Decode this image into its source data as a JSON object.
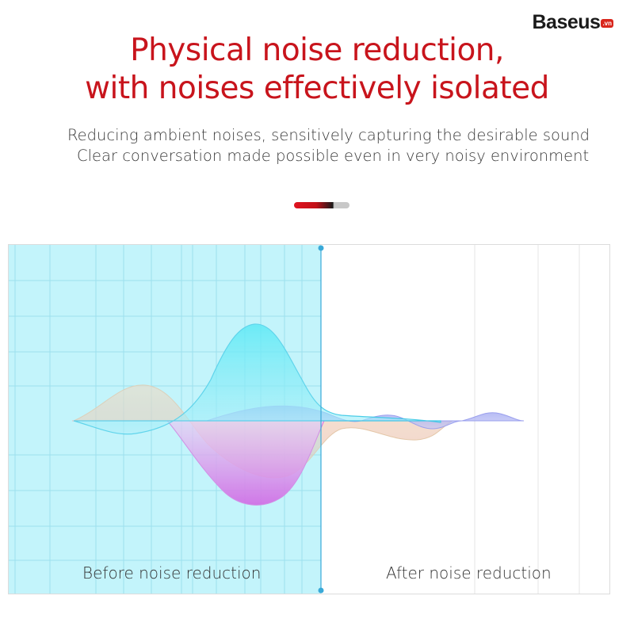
{
  "brand": {
    "name": "Baseus",
    "suffix": ".vn"
  },
  "headline": {
    "line1": "Physical noise reduction,",
    "line2": "with noises effectively isolated"
  },
  "subtext": {
    "line1": "Reducing ambient noises, sensitively capturing the desirable sound",
    "line2": "Clear conversation made possible even in very noisy environment"
  },
  "comparison": {
    "before_label": "Before noise reduction",
    "after_label": "After noise reduction"
  },
  "colors": {
    "accent": "#c8141c",
    "before_panel": "#c2f4fa",
    "cyan_wave": "#2de4f2",
    "pink_wave": "#e06ae6",
    "divider_line": "#3aa9d8"
  }
}
